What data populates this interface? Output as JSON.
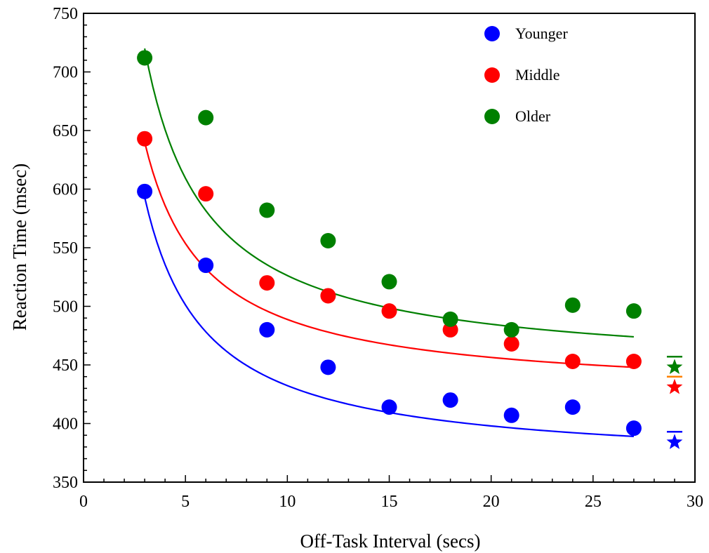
{
  "chart_data": {
    "type": "scatter",
    "title": "",
    "xlabel": "Off-Task Interval (secs)",
    "ylabel": "Reaction Time (msec)",
    "xlim": [
      0,
      30
    ],
    "ylim": [
      350,
      750
    ],
    "xticks": [
      0,
      5,
      10,
      15,
      20,
      25,
      30
    ],
    "yticks": [
      350,
      400,
      450,
      500,
      550,
      600,
      650,
      700,
      750
    ],
    "grid": false,
    "legend_position": "top-right",
    "series": [
      {
        "name": "Younger",
        "color": "#0000ff",
        "x": [
          3,
          6,
          9,
          12,
          15,
          18,
          21,
          24,
          27
        ],
        "y": [
          598,
          535,
          480,
          448,
          414,
          420,
          407,
          414,
          396
        ],
        "fit": {
          "x": [
            3,
            27
          ],
          "y": [
            593,
            389
          ]
        },
        "star": {
          "x": 29,
          "y": 384,
          "mark_y": 393,
          "mark_color": "#0000ff"
        }
      },
      {
        "name": "Middle",
        "color": "#ff0000",
        "x": [
          3,
          6,
          9,
          12,
          15,
          18,
          21,
          24,
          27
        ],
        "y": [
          643,
          596,
          520,
          509,
          496,
          480,
          468,
          453,
          453
        ],
        "fit": {
          "x": [
            3,
            27
          ],
          "y": [
            640,
            448
          ]
        },
        "star": {
          "x": 29,
          "y": 431,
          "mark_y": 440,
          "mark_color": "#ff8000"
        }
      },
      {
        "name": "Older",
        "color": "#008000",
        "x": [
          3,
          6,
          9,
          12,
          15,
          18,
          21,
          24,
          27
        ],
        "y": [
          712,
          661,
          582,
          556,
          521,
          489,
          480,
          501,
          496
        ],
        "fit": {
          "x": [
            3,
            27
          ],
          "y": [
            720,
            474
          ]
        },
        "star": {
          "x": 29,
          "y": 448,
          "mark_y": 457,
          "mark_color": "#008000"
        }
      }
    ]
  }
}
